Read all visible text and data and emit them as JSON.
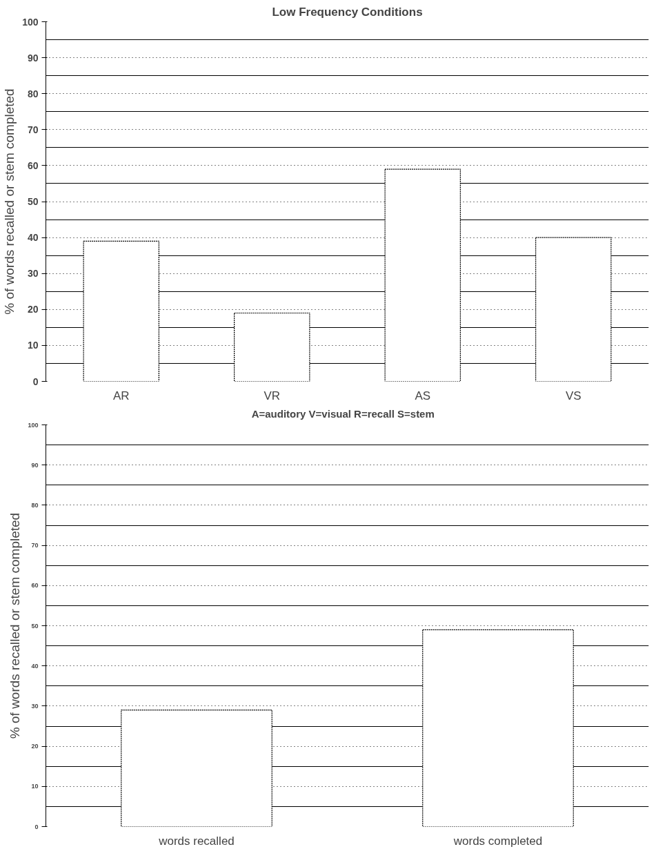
{
  "chart_data": [
    {
      "type": "bar",
      "title": "Low Frequency Conditions",
      "xlabel": "A=auditory V=visual   R=recall  S=stem",
      "ylabel": "% of words recalled or stem completed",
      "categories": [
        "AR",
        "VR",
        "AS",
        "VS"
      ],
      "values": [
        39,
        19,
        59,
        40
      ],
      "color": "#ffffff",
      "ylim": [
        0,
        100
      ],
      "yticks": [
        0,
        10,
        20,
        30,
        40,
        50,
        60,
        70,
        80,
        90,
        100
      ],
      "grid": "y"
    },
    {
      "type": "bar",
      "ylabel": "% of words recalled or stem completed",
      "categories": [
        "words recalled",
        "words completed"
      ],
      "values": [
        29,
        49
      ],
      "color": "#ffffff",
      "ylim": [
        0,
        100
      ],
      "yticks": [
        0,
        10,
        20,
        30,
        40,
        50,
        60,
        70,
        80,
        90,
        100
      ],
      "grid": "y"
    }
  ]
}
